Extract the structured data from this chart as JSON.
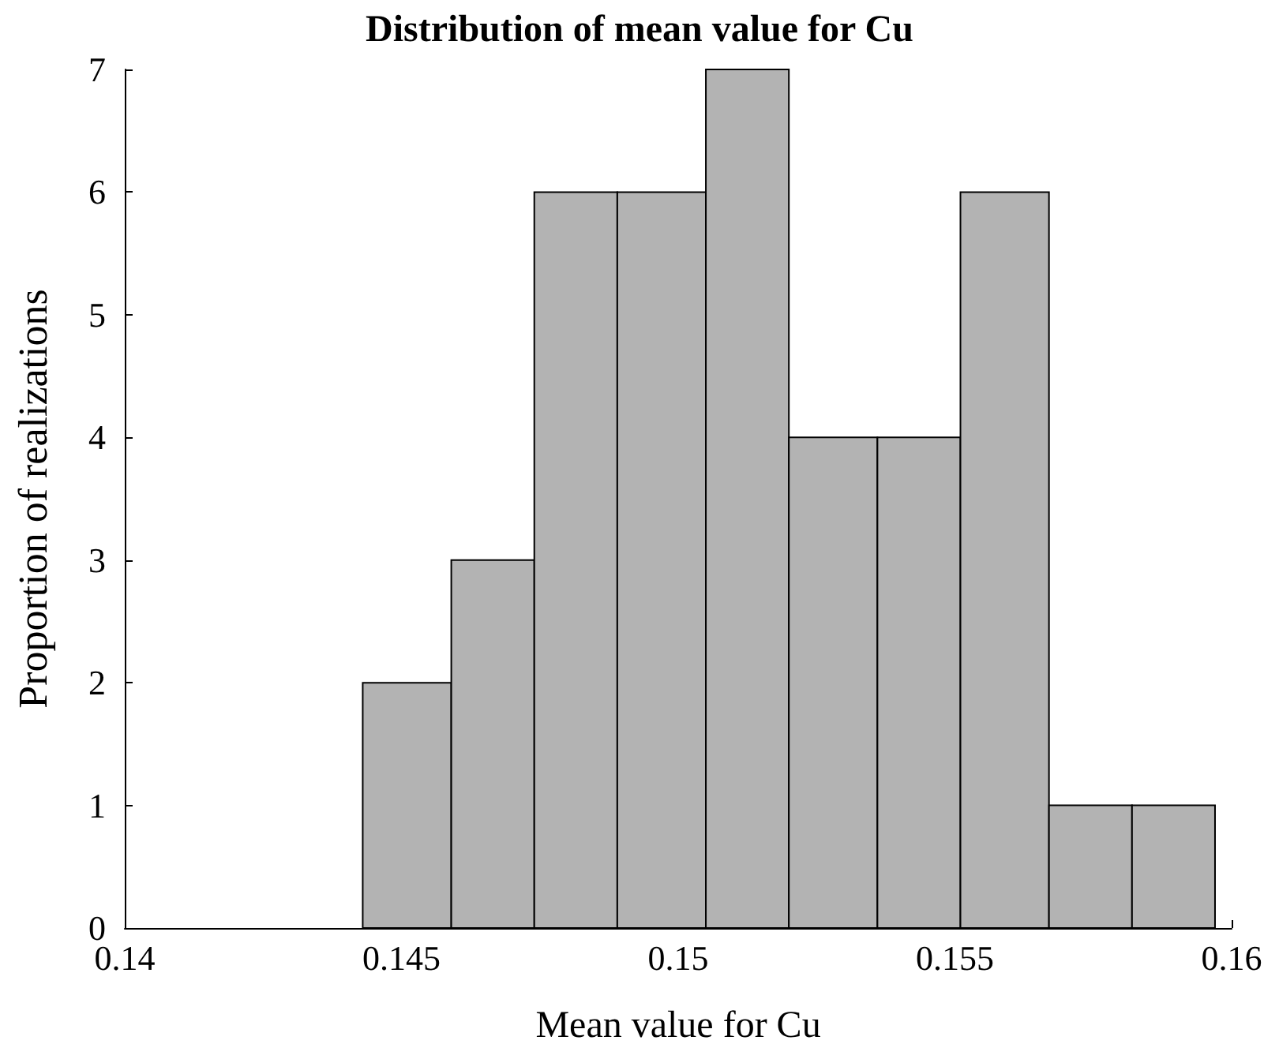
{
  "chart_data": {
    "type": "histogram",
    "title": "Distribution of mean value for Cu",
    "xlabel": "Mean value for Cu",
    "ylabel": "Proportion of realizations",
    "bins": [
      0.1443,
      0.1459,
      0.1474,
      0.1489,
      0.1505,
      0.152,
      0.1536,
      0.1551,
      0.1567,
      0.1582,
      0.1597
    ],
    "values": [
      2,
      3,
      6,
      6,
      7,
      4,
      4,
      6,
      1,
      1
    ],
    "color": "#b3b3b3",
    "xlim": [
      0.14,
      0.16
    ],
    "xticks": [
      0.14,
      0.145,
      0.15,
      0.155,
      0.16
    ],
    "ylim": [
      0,
      7
    ],
    "yticks": [
      0,
      1,
      2,
      3,
      4,
      5,
      6,
      7
    ],
    "grid": false
  }
}
